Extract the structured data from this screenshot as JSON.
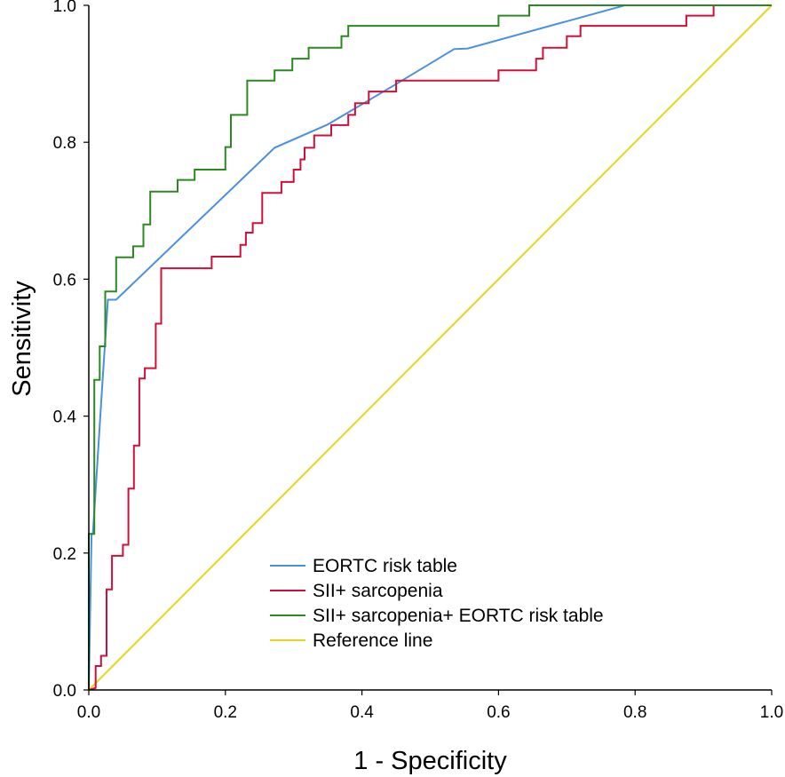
{
  "chart_data": {
    "type": "line",
    "title": "",
    "xlabel": "1 - Specificity",
    "ylabel": "Sensitivity",
    "xlim": [
      0,
      1
    ],
    "ylim": [
      0,
      1
    ],
    "xticks": [
      "0.0",
      "0.2",
      "0.4",
      "0.6",
      "0.8",
      "1.0"
    ],
    "yticks": [
      "0.0",
      "0.2",
      "0.4",
      "0.6",
      "0.8",
      "1.0"
    ],
    "legend_position": "bottom-center",
    "series": [
      {
        "name": "EORTC risk table",
        "color": "#4a90e2",
        "points": [
          [
            0,
            0
          ],
          [
            0.004,
            0.228
          ],
          [
            0.006,
            0.228
          ],
          [
            0.02,
            0.45
          ],
          [
            0.028,
            0.57
          ],
          [
            0.04,
            0.57
          ],
          [
            0.272,
            0.792
          ],
          [
            0.35,
            0.826
          ],
          [
            0.45,
            0.885
          ],
          [
            0.535,
            0.936
          ],
          [
            0.555,
            0.937
          ],
          [
            0.785,
            1.0
          ],
          [
            1.0,
            1.0
          ]
        ]
      },
      {
        "name": "SII+ sarcopenia",
        "color": "#d0103a",
        "points": [
          [
            0,
            0
          ],
          [
            0.01,
            0.003
          ],
          [
            0.01,
            0.035
          ],
          [
            0.018,
            0.035
          ],
          [
            0.018,
            0.05
          ],
          [
            0.026,
            0.05
          ],
          [
            0.026,
            0.147
          ],
          [
            0.034,
            0.147
          ],
          [
            0.034,
            0.196
          ],
          [
            0.05,
            0.196
          ],
          [
            0.05,
            0.212
          ],
          [
            0.058,
            0.212
          ],
          [
            0.058,
            0.294
          ],
          [
            0.066,
            0.294
          ],
          [
            0.066,
            0.357
          ],
          [
            0.074,
            0.357
          ],
          [
            0.074,
            0.455
          ],
          [
            0.082,
            0.455
          ],
          [
            0.082,
            0.47
          ],
          [
            0.098,
            0.47
          ],
          [
            0.098,
            0.535
          ],
          [
            0.106,
            0.535
          ],
          [
            0.106,
            0.616
          ],
          [
            0.18,
            0.616
          ],
          [
            0.18,
            0.633
          ],
          [
            0.222,
            0.633
          ],
          [
            0.222,
            0.65
          ],
          [
            0.23,
            0.65
          ],
          [
            0.23,
            0.668
          ],
          [
            0.24,
            0.668
          ],
          [
            0.24,
            0.682
          ],
          [
            0.254,
            0.682
          ],
          [
            0.254,
            0.726
          ],
          [
            0.282,
            0.726
          ],
          [
            0.282,
            0.742
          ],
          [
            0.3,
            0.742
          ],
          [
            0.3,
            0.76
          ],
          [
            0.31,
            0.76
          ],
          [
            0.31,
            0.775
          ],
          [
            0.316,
            0.775
          ],
          [
            0.316,
            0.792
          ],
          [
            0.33,
            0.792
          ],
          [
            0.33,
            0.81
          ],
          [
            0.355,
            0.81
          ],
          [
            0.355,
            0.825
          ],
          [
            0.38,
            0.825
          ],
          [
            0.38,
            0.84
          ],
          [
            0.39,
            0.84
          ],
          [
            0.39,
            0.857
          ],
          [
            0.41,
            0.857
          ],
          [
            0.41,
            0.874
          ],
          [
            0.45,
            0.874
          ],
          [
            0.45,
            0.89
          ],
          [
            0.6,
            0.89
          ],
          [
            0.6,
            0.905
          ],
          [
            0.655,
            0.905
          ],
          [
            0.655,
            0.922
          ],
          [
            0.665,
            0.922
          ],
          [
            0.665,
            0.938
          ],
          [
            0.7,
            0.938
          ],
          [
            0.7,
            0.955
          ],
          [
            0.72,
            0.955
          ],
          [
            0.72,
            0.97
          ],
          [
            0.875,
            0.97
          ],
          [
            0.875,
            0.985
          ],
          [
            0.915,
            0.985
          ],
          [
            0.915,
            1.0
          ],
          [
            1.0,
            1.0
          ]
        ]
      },
      {
        "name": "SII+ sarcopenia+ EORTC risk table",
        "color": "#2a8a1f",
        "points": [
          [
            0,
            0
          ],
          [
            0,
            0.228
          ],
          [
            0.008,
            0.228
          ],
          [
            0.008,
            0.453
          ],
          [
            0.016,
            0.453
          ],
          [
            0.016,
            0.502
          ],
          [
            0.024,
            0.502
          ],
          [
            0.024,
            0.582
          ],
          [
            0.04,
            0.582
          ],
          [
            0.04,
            0.632
          ],
          [
            0.065,
            0.632
          ],
          [
            0.065,
            0.648
          ],
          [
            0.08,
            0.648
          ],
          [
            0.08,
            0.68
          ],
          [
            0.09,
            0.68
          ],
          [
            0.09,
            0.728
          ],
          [
            0.13,
            0.728
          ],
          [
            0.13,
            0.745
          ],
          [
            0.155,
            0.745
          ],
          [
            0.155,
            0.76
          ],
          [
            0.2,
            0.76
          ],
          [
            0.2,
            0.793
          ],
          [
            0.208,
            0.793
          ],
          [
            0.208,
            0.84
          ],
          [
            0.232,
            0.84
          ],
          [
            0.232,
            0.89
          ],
          [
            0.272,
            0.89
          ],
          [
            0.272,
            0.905
          ],
          [
            0.298,
            0.905
          ],
          [
            0.298,
            0.922
          ],
          [
            0.322,
            0.922
          ],
          [
            0.322,
            0.938
          ],
          [
            0.37,
            0.938
          ],
          [
            0.37,
            0.955
          ],
          [
            0.38,
            0.955
          ],
          [
            0.38,
            0.97
          ],
          [
            0.6,
            0.97
          ],
          [
            0.6,
            0.985
          ],
          [
            0.645,
            0.985
          ],
          [
            0.645,
            1.0
          ],
          [
            1.0,
            1.0
          ]
        ]
      },
      {
        "name": "Reference line",
        "color": "#e6d619",
        "points": [
          [
            0,
            0
          ],
          [
            1,
            1
          ]
        ]
      }
    ]
  }
}
